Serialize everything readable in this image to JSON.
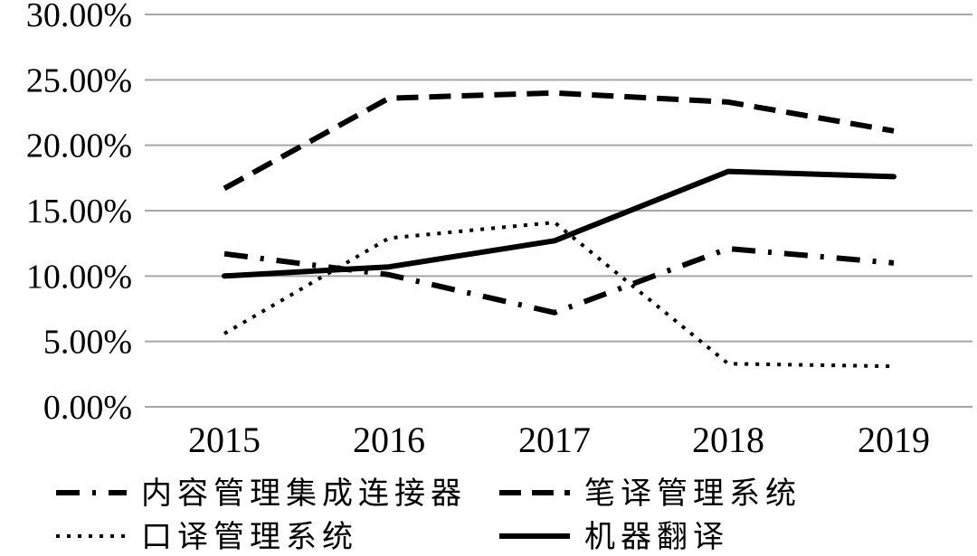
{
  "chart_data": {
    "type": "line",
    "categories": [
      "2015",
      "2016",
      "2017",
      "2018",
      "2019"
    ],
    "y_ticks": [
      "0.00%",
      "5.00%",
      "10.00%",
      "15.00%",
      "20.00%",
      "25.00%",
      "30.00%"
    ],
    "ylim": [
      0,
      30
    ],
    "grid": "horizontal",
    "legend_position": "bottom",
    "series": [
      {
        "name": "内容管理集成连接器",
        "style": "dash-dot",
        "values": [
          11.7,
          10.1,
          7.2,
          12.1,
          11.0
        ]
      },
      {
        "name": "笔译管理系统",
        "style": "dashed",
        "values": [
          16.7,
          23.6,
          24.0,
          23.3,
          21.1
        ]
      },
      {
        "name": "口译管理系统",
        "style": "dotted",
        "values": [
          5.6,
          12.9,
          14.1,
          3.3,
          3.1
        ]
      },
      {
        "name": "机器翻译",
        "style": "solid",
        "values": [
          10.0,
          10.7,
          12.7,
          18.0,
          17.6
        ]
      }
    ],
    "colors": {
      "line": "#000000",
      "grid": "#a6a6a6",
      "background": "#ffffff"
    }
  }
}
